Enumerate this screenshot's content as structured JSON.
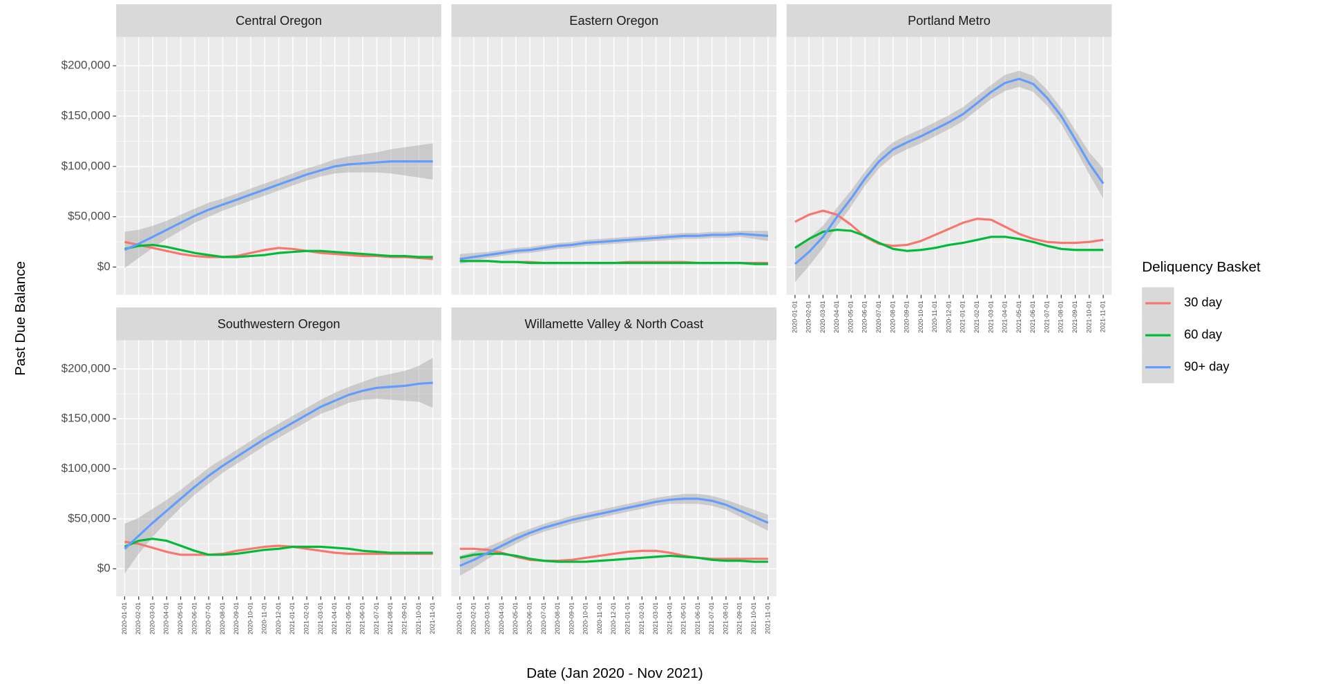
{
  "chart_data": {
    "type": "line",
    "y_label": "Past Due Balance",
    "x_label": "Date (Jan 2020 - Nov 2021)",
    "legend_title": "Deliquency Basket",
    "grid": true,
    "ylim": [
      -27600,
      228500
    ],
    "yticks": [
      {
        "value": 0,
        "label": "$0"
      },
      {
        "value": 50000,
        "label": "$50,000"
      },
      {
        "value": 100000,
        "label": "$100,000"
      },
      {
        "value": 150000,
        "label": "$150,000"
      },
      {
        "value": 200000,
        "label": "$200,000"
      }
    ],
    "x": [
      "2020-01-01",
      "2020-02-01",
      "2020-03-01",
      "2020-04-01",
      "2020-05-01",
      "2020-06-01",
      "2020-07-01",
      "2020-08-01",
      "2020-09-01",
      "2020-10-01",
      "2020-11-01",
      "2020-12-01",
      "2021-01-01",
      "2021-02-01",
      "2021-03-01",
      "2021-04-01",
      "2021-05-01",
      "2021-06-01",
      "2021-07-01",
      "2021-08-01",
      "2021-09-01",
      "2021-10-01",
      "2021-11-01"
    ],
    "panels": [
      {
        "title": "Central Oregon",
        "series": [
          {
            "name": "30 day",
            "color": "#F8766D",
            "values": [
              25000,
              22000,
              19000,
              16000,
              13000,
              11000,
              10000,
              10000,
              11000,
              14000,
              17000,
              19000,
              18000,
              16000,
              14000,
              13000,
              12000,
              11000,
              11000,
              10000,
              10000,
              9000,
              8000
            ]
          },
          {
            "name": "60 day",
            "color": "#00BA38",
            "values": [
              18000,
              21000,
              22000,
              20000,
              17000,
              14000,
              12000,
              10000,
              10000,
              11000,
              12000,
              14000,
              15000,
              16000,
              16000,
              15000,
              14000,
              13000,
              12000,
              11000,
              11000,
              10000,
              10000
            ]
          },
          {
            "name": "90+ day",
            "color": "#619CFF",
            "values": [
              17000,
              23000,
              30000,
              37000,
              44000,
              51000,
              57000,
              62000,
              67000,
              72000,
              77000,
              82000,
              87000,
              92000,
              96000,
              100000,
              102000,
              103000,
              104000,
              105000,
              105000,
              105000,
              105000
            ],
            "lower": [
              -1000,
              9000,
              19000,
              28000,
              36000,
              44000,
              50000,
              56000,
              61000,
              66000,
              71000,
              76000,
              81000,
              86000,
              90000,
              93000,
              94000,
              94000,
              94000,
              93000,
              91000,
              89000,
              87000
            ],
            "upper": [
              35000,
              37000,
              41000,
              46000,
              52000,
              58000,
              64000,
              68000,
              73000,
              78000,
              83000,
              88000,
              93000,
              98000,
              102000,
              107000,
              110000,
              112000,
              114000,
              117000,
              119000,
              121000,
              123000
            ]
          }
        ]
      },
      {
        "title": "Eastern Oregon",
        "series": [
          {
            "name": "30 day",
            "color": "#F8766D",
            "values": [
              6000,
              6000,
              6000,
              5000,
              5000,
              5000,
              4000,
              4000,
              4000,
              4000,
              4000,
              4000,
              5000,
              5000,
              5000,
              5000,
              5000,
              4000,
              4000,
              4000,
              4000,
              4000,
              4000
            ]
          },
          {
            "name": "60 day",
            "color": "#00BA38",
            "values": [
              6000,
              6000,
              6000,
              5000,
              5000,
              4000,
              4000,
              4000,
              4000,
              4000,
              4000,
              4000,
              4000,
              4000,
              4000,
              4000,
              4000,
              4000,
              4000,
              4000,
              4000,
              3000,
              3000
            ]
          },
          {
            "name": "90+ day",
            "color": "#619CFF",
            "values": [
              8000,
              10000,
              12000,
              14000,
              16000,
              17000,
              19000,
              21000,
              22000,
              24000,
              25000,
              26000,
              27000,
              28000,
              29000,
              30000,
              31000,
              31000,
              32000,
              32000,
              33000,
              32000,
              31000
            ],
            "lower": [
              3000,
              6000,
              9000,
              11000,
              13000,
              14000,
              16000,
              18000,
              19000,
              21000,
              22000,
              23000,
              24000,
              25000,
              26000,
              27000,
              28000,
              28000,
              29000,
              29000,
              30000,
              28000,
              26000
            ],
            "upper": [
              13000,
              14000,
              15000,
              17000,
              19000,
              20000,
              22000,
              24000,
              25000,
              27000,
              28000,
              29000,
              30000,
              31000,
              32000,
              33000,
              34000,
              34000,
              35000,
              35000,
              36000,
              36000,
              36000
            ]
          }
        ]
      },
      {
        "title": "Portland Metro",
        "series": [
          {
            "name": "30 day",
            "color": "#F8766D",
            "values": [
              45000,
              52000,
              56000,
              52000,
              42000,
              30000,
              23000,
              21000,
              22000,
              26000,
              32000,
              38000,
              44000,
              48000,
              47000,
              40000,
              33000,
              28000,
              25000,
              24000,
              24000,
              25000,
              27000
            ]
          },
          {
            "name": "60 day",
            "color": "#00BA38",
            "values": [
              19000,
              28000,
              35000,
              37000,
              36000,
              31000,
              24000,
              18000,
              16000,
              17000,
              19000,
              22000,
              24000,
              27000,
              30000,
              30000,
              28000,
              25000,
              21000,
              18000,
              17000,
              17000,
              17000
            ]
          },
          {
            "name": "90+ day",
            "color": "#619CFF",
            "values": [
              3000,
              15000,
              30000,
              50000,
              68000,
              88000,
              105000,
              117000,
              124000,
              130000,
              137000,
              144000,
              152000,
              163000,
              174000,
              183000,
              187000,
              182000,
              168000,
              150000,
              127000,
              103000,
              83000
            ],
            "lower": [
              -15000,
              1000,
              19000,
              41000,
              60000,
              81000,
              98000,
              110000,
              117000,
              123000,
              130000,
              137000,
              145000,
              156000,
              167000,
              175000,
              179000,
              174000,
              160000,
              142000,
              118000,
              92000,
              68000
            ],
            "upper": [
              21000,
              29000,
              41000,
              59000,
              76000,
              95000,
              112000,
              124000,
              131000,
              137000,
              144000,
              151000,
              159000,
              170000,
              181000,
              191000,
              195000,
              190000,
              176000,
              158000,
              136000,
              114000,
              98000
            ]
          }
        ]
      },
      {
        "title": "Southwestern Oregon",
        "series": [
          {
            "name": "30 day",
            "color": "#F8766D",
            "values": [
              27000,
              25000,
              21000,
              17000,
              14000,
              14000,
              14000,
              15000,
              18000,
              20000,
              22000,
              23000,
              22000,
              20000,
              18000,
              16000,
              15000,
              15000,
              15000,
              15000,
              15000,
              15000,
              15000
            ]
          },
          {
            "name": "60 day",
            "color": "#00BA38",
            "values": [
              22000,
              28000,
              30000,
              28000,
              23000,
              18000,
              14000,
              14000,
              15000,
              17000,
              19000,
              20000,
              22000,
              22000,
              22000,
              21000,
              20000,
              18000,
              17000,
              16000,
              16000,
              16000,
              16000
            ]
          },
          {
            "name": "90+ day",
            "color": "#619CFF",
            "values": [
              20000,
              33000,
              46000,
              58000,
              70000,
              82000,
              93000,
              103000,
              112000,
              121000,
              130000,
              138000,
              146000,
              154000,
              162000,
              168000,
              174000,
              178000,
              181000,
              182000,
              183000,
              185000,
              186000
            ],
            "lower": [
              -5000,
              15000,
              32000,
              47000,
              61000,
              74000,
              85000,
              96000,
              105000,
              114000,
              123000,
              131000,
              139000,
              147000,
              155000,
              160000,
              166000,
              169000,
              170000,
              169000,
              168000,
              167000,
              161000
            ],
            "upper": [
              45000,
              51000,
              60000,
              69000,
              79000,
              90000,
              101000,
              110000,
              119000,
              128000,
              137000,
              145000,
              153000,
              161000,
              169000,
              176000,
              182000,
              187000,
              192000,
              195000,
              198000,
              203000,
              211000
            ]
          }
        ]
      },
      {
        "title": "Willamette Valley & North Coast",
        "series": [
          {
            "name": "30 day",
            "color": "#F8766D",
            "values": [
              20000,
              20000,
              19000,
              16000,
              12000,
              9000,
              8000,
              8000,
              9000,
              11000,
              13000,
              15000,
              17000,
              18000,
              18000,
              16000,
              13000,
              11000,
              10000,
              10000,
              10000,
              10000,
              10000
            ]
          },
          {
            "name": "60 day",
            "color": "#00BA38",
            "values": [
              11000,
              14000,
              15000,
              15000,
              13000,
              10000,
              8000,
              7000,
              7000,
              7000,
              8000,
              9000,
              10000,
              11000,
              12000,
              13000,
              12000,
              11000,
              9000,
              8000,
              8000,
              7000,
              7000
            ]
          },
          {
            "name": "90+ day",
            "color": "#619CFF",
            "values": [
              3000,
              9000,
              16000,
              23000,
              30000,
              36000,
              41000,
              45000,
              49000,
              52000,
              55000,
              58000,
              61000,
              64000,
              67000,
              69000,
              70000,
              70000,
              68000,
              64000,
              58000,
              52000,
              46000
            ],
            "lower": [
              -7000,
              1000,
              10000,
              18000,
              25000,
              32000,
              37000,
              41000,
              45000,
              48000,
              51000,
              54000,
              57000,
              60000,
              63000,
              65000,
              65000,
              65000,
              63000,
              59000,
              52000,
              45000,
              38000
            ],
            "upper": [
              13000,
              17000,
              22000,
              28000,
              35000,
              40000,
              45000,
              49000,
              53000,
              56000,
              59000,
              62000,
              65000,
              68000,
              71000,
              73000,
              75000,
              75000,
              73000,
              69000,
              64000,
              59000,
              54000
            ]
          }
        ]
      }
    ]
  }
}
